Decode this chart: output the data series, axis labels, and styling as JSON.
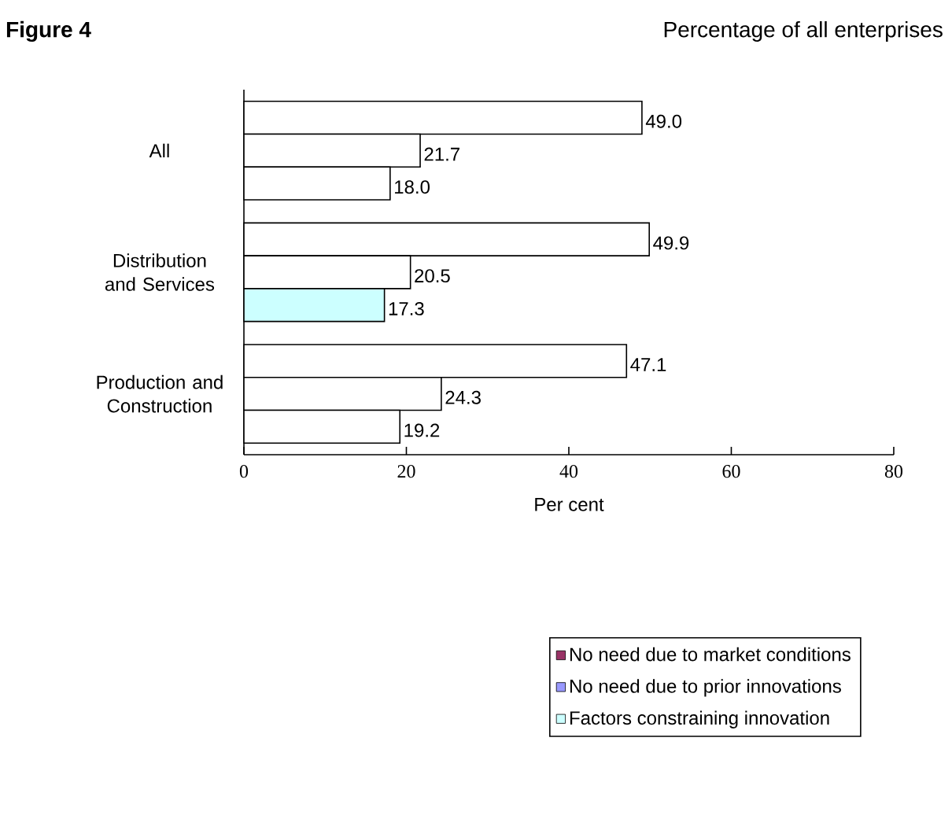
{
  "chart_data": {
    "type": "bar",
    "orientation": "horizontal",
    "title": "**Figure 4**",
    "subtitle": "Percentage of all enterprises",
    "xlabel": "Per cent",
    "categories": [
      "All",
      "Distribution and Services",
      "Production and Construction"
    ],
    "series": [
      {
        "name": "No need due to market conditions",
        "color": "#993366",
        "colors": [
          "#ffffff",
          "#ffffff",
          "#ffffff"
        ],
        "values": [
          49.0,
          49.9,
          47.1
        ],
        "value_labels": [
          "49.0",
          "49.9",
          "47.1"
        ]
      },
      {
        "name": "No need due to prior innovations",
        "color": "#9999ff",
        "colors": [
          "#ffffff",
          "#ffffff",
          "#ffffff"
        ],
        "values": [
          21.7,
          20.5,
          24.3
        ],
        "value_labels": [
          "21.7",
          "20.5",
          "24.3"
        ]
      },
      {
        "name": "Factors constraining innovation",
        "color": "#ccffff",
        "colors": [
          "#ffffff",
          "#ccffff",
          "#ffffff"
        ],
        "values": [
          18.0,
          17.3,
          19.2
        ],
        "value_labels": [
          "18.0",
          "17.3",
          "19.2"
        ]
      }
    ],
    "xlim": [
      0,
      80
    ],
    "xticks": [
      0,
      20,
      40,
      60,
      80
    ],
    "legend": "bottom",
    "grid": false
  }
}
